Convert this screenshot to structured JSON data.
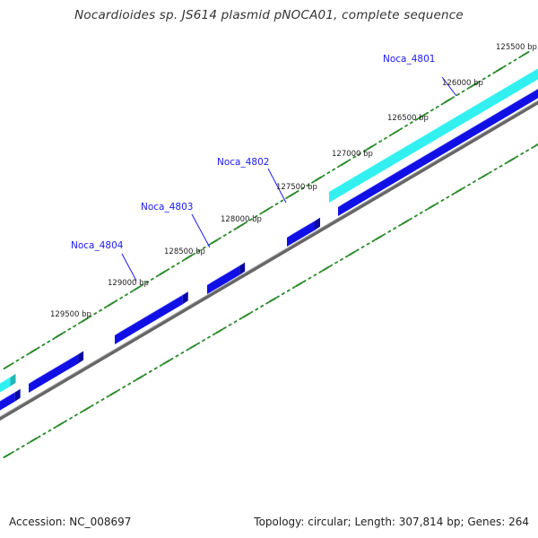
{
  "title": "Nocardioides sp. JS614 plasmid pNOCA01, complete sequence",
  "footer": {
    "accession": "Accession: NC_008697",
    "summary": "Topology: circular; Length: 307,814 bp; Genes: 264"
  },
  "colors": {
    "tick": "#2a8a2a",
    "forward_gene": "#1010e6",
    "forward_gene_top": "#5555ff",
    "forward_gene_side": "#0808a0",
    "cds_band": "#33f0f0",
    "cds_band_top": "#aaffff",
    "cds_band_side": "#20b8b8",
    "backbone": "#777777",
    "gene_label": "#1a1aff",
    "position_label": "#222222"
  },
  "position_labels": [
    {
      "name": "pos-125500",
      "text": "125500 bp"
    },
    {
      "name": "pos-126000",
      "text": "126000 bp"
    },
    {
      "name": "pos-126500",
      "text": "126500 bp"
    },
    {
      "name": "pos-127000",
      "text": "127000 bp"
    },
    {
      "name": "pos-127500",
      "text": "127500 bp"
    },
    {
      "name": "pos-128000",
      "text": "128000 bp"
    },
    {
      "name": "pos-128500",
      "text": "128500 bp"
    },
    {
      "name": "pos-129000",
      "text": "129000 bp"
    },
    {
      "name": "pos-129500",
      "text": "129500 bp"
    }
  ],
  "gene_labels": [
    {
      "name": "gene-noca-4801",
      "text": "Noca_4801"
    },
    {
      "name": "gene-noca-4802",
      "text": "Noca_4802"
    },
    {
      "name": "gene-noca-4803",
      "text": "Noca_4803"
    },
    {
      "name": "gene-noca-4804",
      "text": "Noca_4804"
    }
  ]
}
